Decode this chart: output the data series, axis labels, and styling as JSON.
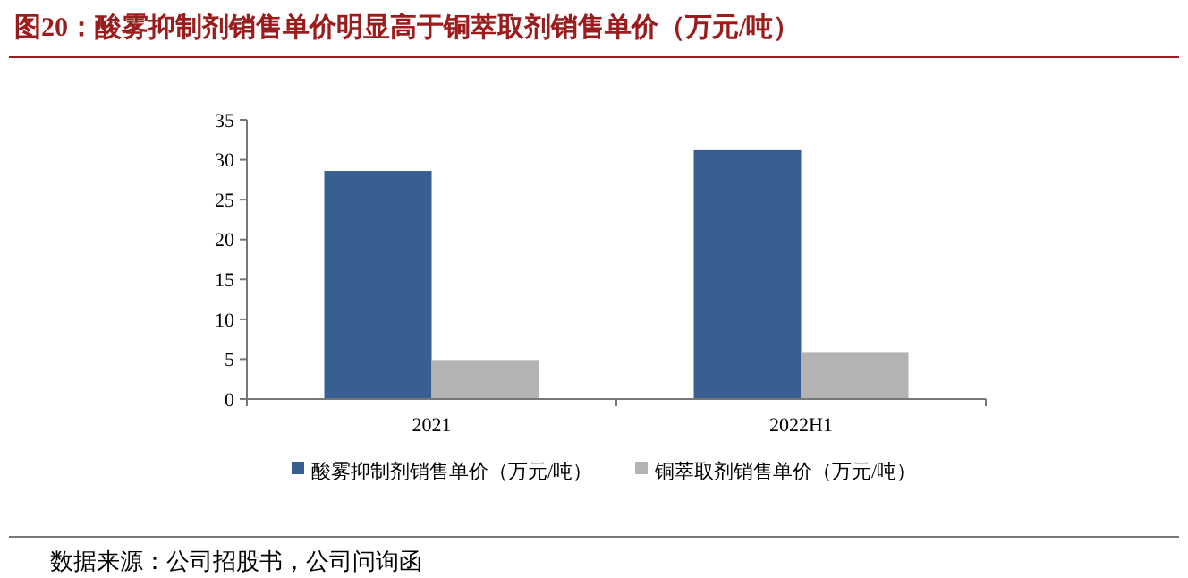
{
  "chart_data": {
    "type": "bar",
    "title": "图20：酸雾抑制剂销售单价明显高于铜萃取剂销售单价（万元/吨）",
    "categories": [
      "2021",
      "2022H1"
    ],
    "series": [
      {
        "name": "酸雾抑制剂销售单价（万元/吨）",
        "color": "#375f92",
        "values": [
          28.6,
          31.2
        ]
      },
      {
        "name": "铜萃取剂销售单价（万元/吨）",
        "color": "#b3b3b3",
        "values": [
          4.9,
          5.9
        ]
      }
    ],
    "ylim": [
      0,
      35
    ],
    "yticks": [
      0,
      5,
      10,
      15,
      20,
      25,
      30,
      35
    ],
    "grid": false,
    "legend": "bottom",
    "annotations": [
      "数据来源：公司招股书，公司问询函"
    ]
  }
}
